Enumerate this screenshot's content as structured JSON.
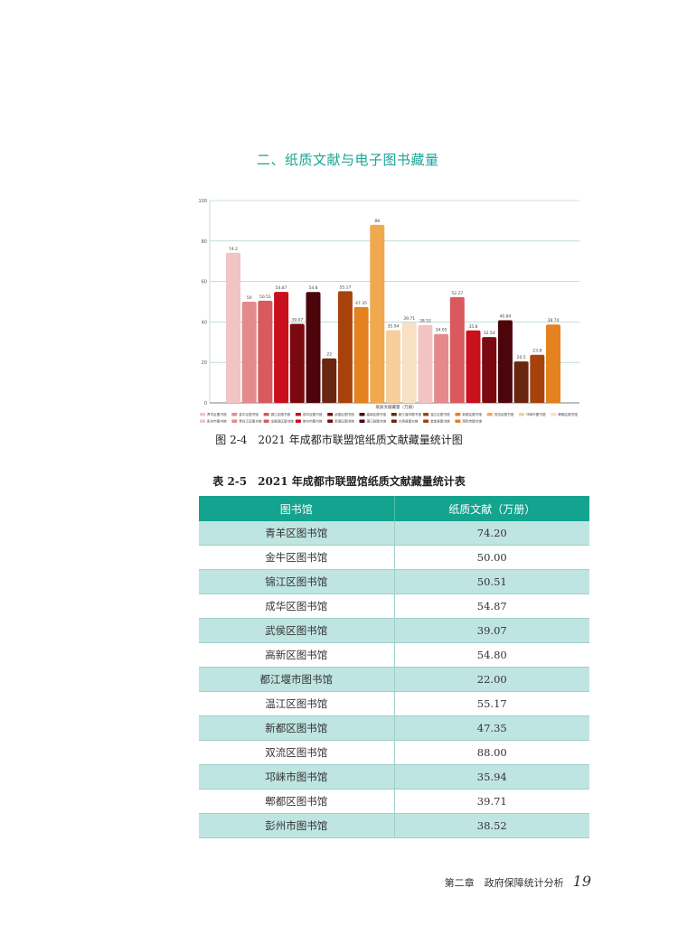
{
  "section_title": "二、纸质文献与电子图书藏量",
  "figure_caption": "图 2-4　2021 年成都市联盟馆纸质文献藏量统计图",
  "table_caption": "表 2-5　2021 年成都市联盟馆纸质文献藏量统计表",
  "table": {
    "headers": [
      "图书馆",
      "纸质文献（万册）"
    ],
    "rows": [
      [
        "青羊区图书馆",
        "74.20"
      ],
      [
        "金牛区图书馆",
        "50.00"
      ],
      [
        "锦江区图书馆",
        "50.51"
      ],
      [
        "成华区图书馆",
        "54.87"
      ],
      [
        "武侯区图书馆",
        "39.07"
      ],
      [
        "高新区图书馆",
        "54.80"
      ],
      [
        "都江堰市图书馆",
        "22.00"
      ],
      [
        "温江区图书馆",
        "55.17"
      ],
      [
        "新都区图书馆",
        "47.35"
      ],
      [
        "双流区图书馆",
        "88.00"
      ],
      [
        "邛崃市图书馆",
        "35.94"
      ],
      [
        "郫都区图书馆",
        "39.71"
      ],
      [
        "彭州市图书馆",
        "38.52"
      ]
    ]
  },
  "footer": {
    "chapter": "第二章　政府保障统计分析",
    "page": "19"
  },
  "chart_data": {
    "type": "bar",
    "xlabel": "纸质文献藏量（万册）",
    "ylabel": "",
    "ylim": [
      0,
      100
    ],
    "yticks": [
      0,
      20,
      40,
      60,
      80,
      100
    ],
    "grid": true,
    "legend_position": "bottom",
    "categories": [
      "青羊区图书馆",
      "金牛区图书馆",
      "锦江区图书馆",
      "成华区图书馆",
      "武侯区图书馆",
      "高新区图书馆",
      "都江堰市图书馆",
      "温江区图书馆",
      "新都区图书馆",
      "双流区图书馆",
      "邛崃市图书馆",
      "郫都区图书馆",
      "彭州市图书馆",
      "青白江区图书馆",
      "龙泉驿区图书馆",
      "崇州市图书馆",
      "新津区图书馆",
      "蒲江县图书馆",
      "大邑县图书馆",
      "金堂县图书馆",
      "简阳市图书馆"
    ],
    "values": [
      74.2,
      50,
      50.51,
      54.87,
      39.07,
      54.8,
      22,
      55.17,
      47.35,
      88,
      35.94,
      39.71,
      38.52,
      34.05,
      52.27,
      35.8,
      32.54,
      40.84,
      20.5,
      23.8,
      38.74
    ],
    "labels": [
      "74.2",
      "50",
      "50.51",
      "54.87",
      "39.07",
      "54.8",
      "22",
      "55.17",
      "47.35",
      "88",
      "35.94",
      "39.71",
      "38.52",
      "34.05",
      "52.27",
      "35.8",
      "32.54",
      "40.84",
      "20.5",
      "23.8",
      "38.74"
    ],
    "colors": [
      "#f2c4c4",
      "#e58a8a",
      "#d9595e",
      "#c8111c",
      "#7a0a0f",
      "#4c050b",
      "#6b2610",
      "#a8420d",
      "#e3821e",
      "#f0a94e",
      "#f6cf9c",
      "#f8e0c3",
      "#f2c4c4",
      "#e58a8a",
      "#d9595e",
      "#c8111c",
      "#7a0a0f",
      "#4c050b",
      "#6b2610",
      "#a8420d",
      "#e3821e"
    ]
  }
}
